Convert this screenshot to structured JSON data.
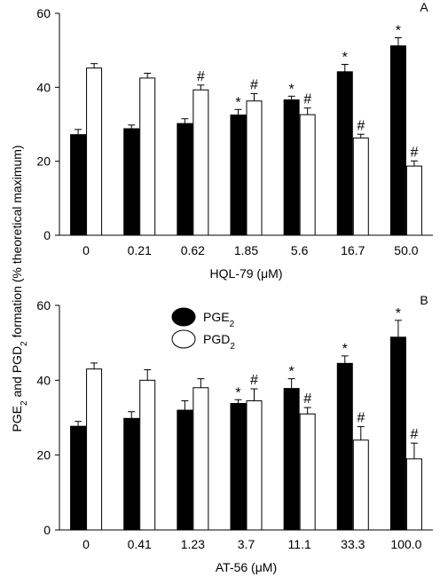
{
  "ylabel_parts": {
    "a": "PGE",
    "sub_a": "2",
    "b": " and PGD",
    "sub_b": "2",
    "c": " formation (% theoretical maximum)"
  },
  "legend": [
    {
      "label": "PGE",
      "sub": "2",
      "fill": "#000000"
    },
    {
      "label": "PGD",
      "sub": "2",
      "fill": "#ffffff"
    }
  ],
  "chart_data": [
    {
      "type": "bar",
      "panel": "A",
      "categories": [
        "0",
        "0.21",
        "0.62",
        "1.85",
        "5.6",
        "16.7",
        "50.0"
      ],
      "xlabel": "HQL-79 (μM)",
      "ylim": [
        0,
        60
      ],
      "yticks": [
        "0",
        "20",
        "40",
        "60"
      ],
      "series": [
        {
          "name": "PGE2",
          "color": "#000000",
          "values": [
            27.2,
            28.8,
            30.2,
            32.5,
            36.6,
            44.2,
            51.2
          ],
          "errors": [
            1.4,
            1.0,
            1.3,
            1.5,
            1.0,
            2.0,
            2.2
          ],
          "markers": [
            "",
            "",
            "",
            "*",
            "*",
            "*",
            "*"
          ]
        },
        {
          "name": "PGD2",
          "color": "#ffffff",
          "values": [
            45.2,
            42.5,
            39.3,
            36.3,
            32.6,
            26.3,
            18.7
          ],
          "errors": [
            1.2,
            1.3,
            1.3,
            2.0,
            1.8,
            1.0,
            1.4
          ],
          "markers": [
            "",
            "",
            "#",
            "#",
            "#",
            "#",
            "#"
          ]
        }
      ]
    },
    {
      "type": "bar",
      "panel": "B",
      "categories": [
        "0",
        "0.41",
        "1.23",
        "3.7",
        "11.1",
        "33.3",
        "100.0"
      ],
      "xlabel": "AT-56 (μM)",
      "ylim": [
        0,
        60
      ],
      "yticks": [
        "0",
        "20",
        "40",
        "60"
      ],
      "series": [
        {
          "name": "PGE2",
          "color": "#000000",
          "values": [
            27.7,
            29.8,
            32.0,
            33.8,
            37.8,
            44.5,
            51.5
          ],
          "errors": [
            1.3,
            1.8,
            2.5,
            1.0,
            2.6,
            2.0,
            4.5
          ],
          "markers": [
            "",
            "",
            "",
            "*",
            "*",
            "*",
            "*"
          ]
        },
        {
          "name": "PGD2",
          "color": "#ffffff",
          "values": [
            43.0,
            40.0,
            38.0,
            34.5,
            31.0,
            24.0,
            19.0
          ],
          "errors": [
            1.6,
            2.8,
            2.4,
            3.2,
            1.7,
            3.6,
            4.2
          ],
          "markers": [
            "",
            "",
            "",
            "#",
            "#",
            "#",
            "#"
          ]
        }
      ]
    }
  ]
}
